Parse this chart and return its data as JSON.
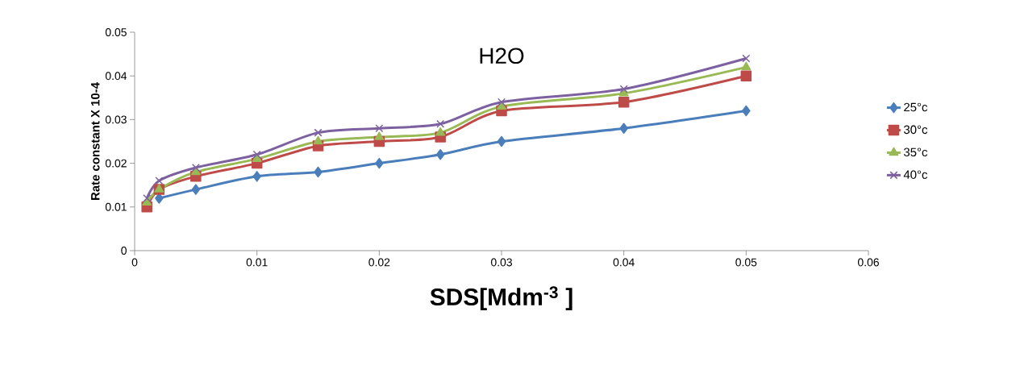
{
  "chart_data": {
    "type": "line",
    "title": "H2O",
    "xlabel": "SDS[Mdm$^{-3}$ ]",
    "ylabel": "Rate constant X 10-4",
    "x": [
      0.001,
      0.002,
      0.005,
      0.01,
      0.015,
      0.02,
      0.025,
      0.03,
      0.04,
      0.05
    ],
    "series": [
      {
        "name": "25°c",
        "color": "#4a7ebb",
        "marker": "diamond",
        "values": [
          null,
          0.012,
          0.014,
          0.017,
          0.018,
          0.02,
          0.022,
          0.025,
          0.028,
          0.032
        ]
      },
      {
        "name": "30°c",
        "color": "#be4b48",
        "marker": "square",
        "values": [
          0.01,
          0.014,
          0.017,
          0.02,
          0.024,
          0.025,
          0.026,
          0.032,
          0.034,
          0.04
        ]
      },
      {
        "name": "35°c",
        "color": "#98b954",
        "marker": "triangle",
        "values": [
          0.011,
          0.014,
          0.018,
          0.021,
          0.025,
          0.026,
          0.027,
          0.033,
          0.036,
          0.042
        ]
      },
      {
        "name": "40°c",
        "color": "#7d60a0",
        "marker": "cross",
        "values": [
          0.012,
          0.016,
          0.019,
          0.022,
          0.027,
          0.028,
          0.029,
          0.034,
          0.037,
          0.044
        ]
      }
    ],
    "xlim": [
      0,
      0.06
    ],
    "xticks": [
      0,
      0.01,
      0.02,
      0.03,
      0.04,
      0.05,
      0.06
    ],
    "ylim": [
      0,
      0.05
    ],
    "yticks": [
      0,
      0.01,
      0.02,
      0.03,
      0.04,
      0.05
    ],
    "grid": false,
    "legend": "right"
  }
}
